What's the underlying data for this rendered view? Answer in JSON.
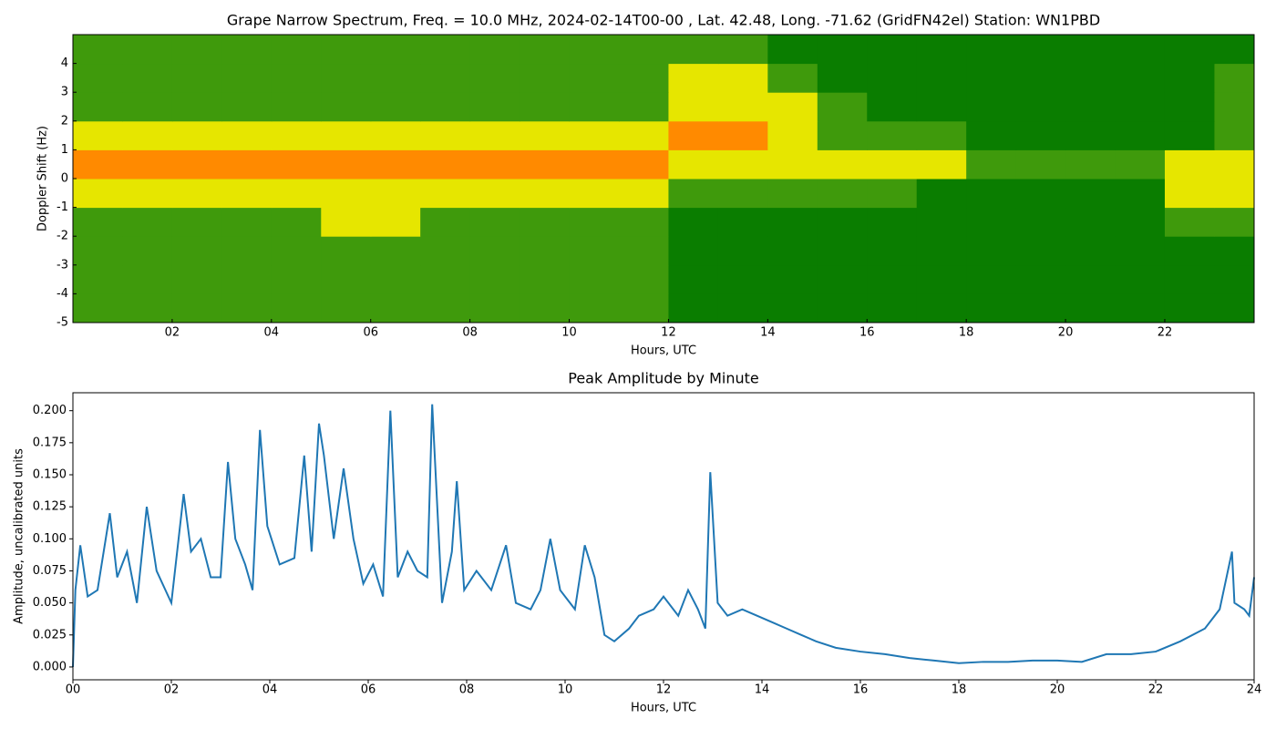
{
  "chart_data": [
    {
      "type": "heatmap",
      "title": "Grape Narrow Spectrum, Freq. = 10.0 MHz, 2024-02-14T00-00 , Lat.  42.48, Long. -71.62 (GridFN42el) Station: WN1PBD",
      "xlabel": "Hours, UTC",
      "ylabel": "Doppler Shift (Hz)",
      "xlim": [
        0,
        23.8
      ],
      "ylim": [
        -5,
        5
      ],
      "xticks": [
        {
          "value": 2,
          "label": "02"
        },
        {
          "value": 4,
          "label": "04"
        },
        {
          "value": 6,
          "label": "06"
        },
        {
          "value": 8,
          "label": "08"
        },
        {
          "value": 10,
          "label": "10"
        },
        {
          "value": 12,
          "label": "12"
        },
        {
          "value": 14,
          "label": "14"
        },
        {
          "value": 16,
          "label": "16"
        },
        {
          "value": 18,
          "label": "18"
        },
        {
          "value": 20,
          "label": "20"
        },
        {
          "value": 22,
          "label": "22"
        }
      ],
      "yticks": [
        -5,
        -4,
        -3,
        -2,
        -1,
        0,
        1,
        2,
        3,
        4
      ],
      "colors": [
        "#0a7d00",
        "#3f9a0c",
        "#e6e600",
        "#ff8a00"
      ],
      "x": [
        0.5,
        1.5,
        2.5,
        3.5,
        4.5,
        5.5,
        6.5,
        7.5,
        8.5,
        9.5,
        10.5,
        11.5,
        12.5,
        13.5,
        14.5,
        15.5,
        16.5,
        17.5,
        18.5,
        19.5,
        20.5,
        21.5,
        22.5,
        23.5
      ],
      "y": [
        -4.5,
        -3.5,
        -2.5,
        -1.5,
        -0.5,
        0.5,
        1.5,
        2.5,
        3.5,
        4.5
      ],
      "z": [
        [
          1,
          1,
          1,
          1,
          1,
          1,
          1,
          1,
          1,
          1,
          1,
          1,
          0,
          0,
          0,
          0,
          0,
          0,
          0,
          0,
          0,
          0,
          0,
          0
        ],
        [
          1,
          1,
          1,
          1,
          1,
          1,
          1,
          1,
          1,
          1,
          1,
          1,
          0,
          0,
          0,
          0,
          0,
          0,
          0,
          0,
          0,
          0,
          0,
          0
        ],
        [
          1,
          1,
          1,
          1,
          1,
          1,
          1,
          1,
          1,
          1,
          1,
          1,
          0,
          0,
          0,
          0,
          0,
          0,
          0,
          0,
          0,
          0,
          0,
          0
        ],
        [
          1,
          1,
          1,
          1,
          1,
          2,
          2,
          1,
          1,
          1,
          1,
          1,
          0,
          0,
          0,
          0,
          0,
          0,
          0,
          0,
          0,
          0,
          1,
          1
        ],
        [
          2,
          2,
          2,
          2,
          2,
          2,
          2,
          2,
          2,
          2,
          2,
          2,
          1,
          1,
          1,
          1,
          1,
          0,
          0,
          0,
          0,
          0,
          2,
          2
        ],
        [
          3,
          3,
          3,
          3,
          3,
          3,
          3,
          3,
          3,
          3,
          3,
          3,
          2,
          2,
          2,
          2,
          2,
          2,
          1,
          1,
          1,
          1,
          2,
          2
        ],
        [
          2,
          2,
          2,
          2,
          2,
          2,
          2,
          2,
          2,
          2,
          2,
          2,
          3,
          3,
          2,
          1,
          1,
          1,
          0,
          0,
          0,
          0,
          0,
          1
        ],
        [
          1,
          1,
          1,
          1,
          1,
          1,
          1,
          1,
          1,
          1,
          1,
          1,
          2,
          2,
          2,
          1,
          0,
          0,
          0,
          0,
          0,
          0,
          0,
          1
        ],
        [
          1,
          1,
          1,
          1,
          1,
          1,
          1,
          1,
          1,
          1,
          1,
          1,
          2,
          2,
          1,
          0,
          0,
          0,
          0,
          0,
          0,
          0,
          0,
          1
        ],
        [
          1,
          1,
          1,
          1,
          1,
          1,
          1,
          1,
          1,
          1,
          1,
          1,
          1,
          1,
          0,
          0,
          0,
          0,
          0,
          0,
          0,
          0,
          0,
          0
        ]
      ]
    },
    {
      "type": "line",
      "title": "Peak Amplitude by Minute",
      "xlabel": "Hours, UTC",
      "ylabel": "Amplitude, uncalibrated units",
      "xlim": [
        0,
        24
      ],
      "ylim": [
        -0.01,
        0.214
      ],
      "xticks": [
        {
          "value": 0,
          "label": "00"
        },
        {
          "value": 2,
          "label": "02"
        },
        {
          "value": 4,
          "label": "04"
        },
        {
          "value": 6,
          "label": "06"
        },
        {
          "value": 8,
          "label": "08"
        },
        {
          "value": 10,
          "label": "10"
        },
        {
          "value": 12,
          "label": "12"
        },
        {
          "value": 14,
          "label": "14"
        },
        {
          "value": 16,
          "label": "16"
        },
        {
          "value": 18,
          "label": "18"
        },
        {
          "value": 20,
          "label": "20"
        },
        {
          "value": 22,
          "label": "22"
        },
        {
          "value": 24,
          "label": "24"
        }
      ],
      "yticks": [
        {
          "value": 0,
          "label": "0.000"
        },
        0.025,
        {
          "value": 0.05,
          "label": "0.050"
        },
        0.075,
        {
          "value": 0.1,
          "label": "0.100"
        },
        0.125,
        {
          "value": 0.15,
          "label": "0.150"
        },
        0.175,
        {
          "value": 0.2,
          "label": "0.200"
        }
      ],
      "color": "#1f77b4",
      "x": [
        0,
        0.05,
        0.15,
        0.3,
        0.5,
        0.75,
        0.9,
        1.1,
        1.3,
        1.5,
        1.7,
        2.0,
        2.25,
        2.4,
        2.6,
        2.8,
        3.0,
        3.15,
        3.3,
        3.5,
        3.65,
        3.8,
        3.95,
        4.2,
        4.5,
        4.7,
        4.85,
        5.0,
        5.1,
        5.3,
        5.5,
        5.7,
        5.9,
        6.1,
        6.3,
        6.45,
        6.6,
        6.8,
        7.0,
        7.2,
        7.3,
        7.5,
        7.7,
        7.8,
        7.95,
        8.2,
        8.5,
        8.8,
        9.0,
        9.3,
        9.5,
        9.7,
        9.9,
        10.2,
        10.4,
        10.6,
        10.8,
        11.0,
        11.3,
        11.5,
        11.8,
        12.0,
        12.3,
        12.5,
        12.7,
        12.85,
        12.95,
        13.1,
        13.3,
        13.6,
        13.9,
        14.2,
        14.5,
        14.8,
        15.1,
        15.5,
        16.0,
        16.5,
        17.0,
        17.5,
        18.0,
        18.5,
        19.0,
        19.5,
        20.0,
        20.5,
        21.0,
        21.5,
        22.0,
        22.5,
        23.0,
        23.3,
        23.55,
        23.6,
        23.8,
        23.9,
        24.0
      ],
      "values": [
        0.0,
        0.06,
        0.095,
        0.055,
        0.06,
        0.12,
        0.07,
        0.09,
        0.05,
        0.125,
        0.075,
        0.05,
        0.135,
        0.09,
        0.1,
        0.07,
        0.07,
        0.16,
        0.1,
        0.08,
        0.06,
        0.185,
        0.11,
        0.08,
        0.085,
        0.165,
        0.09,
        0.19,
        0.165,
        0.1,
        0.155,
        0.1,
        0.065,
        0.08,
        0.055,
        0.2,
        0.07,
        0.09,
        0.075,
        0.07,
        0.205,
        0.05,
        0.09,
        0.145,
        0.06,
        0.075,
        0.06,
        0.095,
        0.05,
        0.045,
        0.06,
        0.1,
        0.06,
        0.045,
        0.095,
        0.07,
        0.025,
        0.02,
        0.03,
        0.04,
        0.045,
        0.055,
        0.04,
        0.06,
        0.045,
        0.03,
        0.152,
        0.05,
        0.04,
        0.045,
        0.04,
        0.035,
        0.03,
        0.025,
        0.02,
        0.015,
        0.012,
        0.01,
        0.007,
        0.005,
        0.003,
        0.004,
        0.004,
        0.005,
        0.005,
        0.004,
        0.01,
        0.01,
        0.012,
        0.02,
        0.03,
        0.045,
        0.09,
        0.05,
        0.045,
        0.04,
        0.07
      ]
    }
  ]
}
